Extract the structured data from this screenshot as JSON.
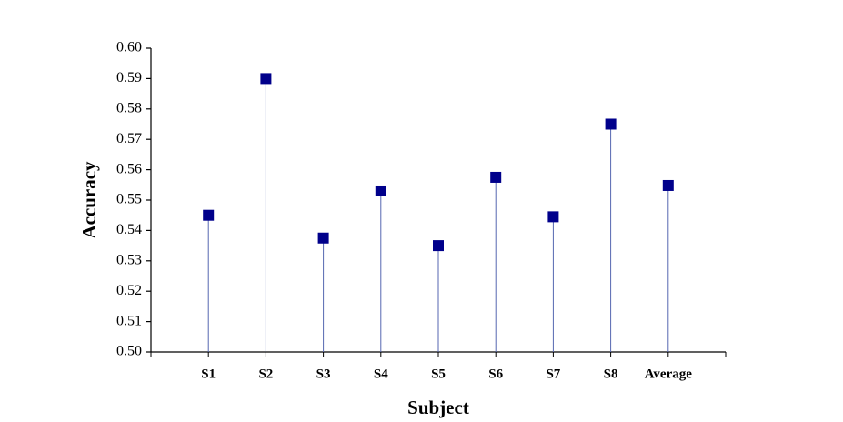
{
  "chart_data": {
    "type": "stem",
    "x_label": "Subject",
    "y_label": "Accuracy",
    "categories": [
      "S1",
      "S2",
      "S3",
      "S4",
      "S5",
      "S6",
      "S7",
      "S8",
      "Average"
    ],
    "values": [
      0.545,
      0.59,
      0.5375,
      0.553,
      0.535,
      0.5575,
      0.5445,
      0.575,
      0.5548
    ],
    "color": "#00008b",
    "stem_color": "#5566b0",
    "ylim": [
      0.5,
      0.6
    ],
    "yticks": [
      {
        "value": 0.5,
        "label": "0.50"
      },
      0.51,
      0.52,
      0.53,
      0.54,
      0.55,
      0.56,
      0.57,
      0.58,
      0.59,
      {
        "value": 0.6,
        "label": "0.60"
      }
    ]
  }
}
